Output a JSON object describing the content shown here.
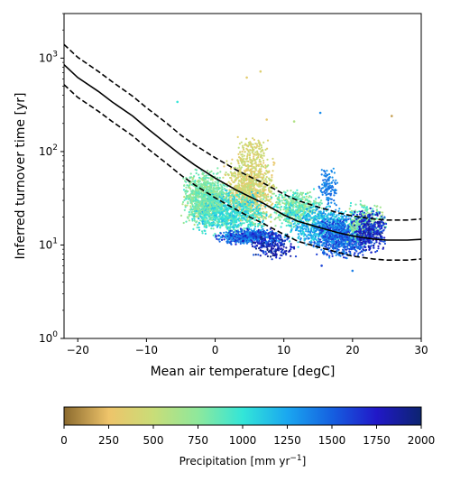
{
  "chart_data": {
    "type": "scatter",
    "x_axis": {
      "label": "Mean air temperature [degC]",
      "range": [
        -22,
        30
      ],
      "ticks": [
        -20,
        -10,
        0,
        10,
        20,
        30
      ],
      "tick_labels": [
        "−20",
        "−10",
        "0",
        "10",
        "20",
        "30"
      ]
    },
    "y_axis": {
      "label": "Inferred turnover time [yr]",
      "scale": "log",
      "range": [
        1,
        3000
      ],
      "ticks": [
        1,
        10,
        100,
        1000
      ],
      "tick_labels": {
        "1": {
          "base": "10",
          "exp": "0"
        },
        "10": {
          "base": "10",
          "exp": "1"
        },
        "100": {
          "base": "10",
          "exp": "2"
        },
        "1000": {
          "base": "10",
          "exp": "3"
        }
      }
    },
    "colorbar": {
      "label_main": "Precipitation [mm yr",
      "label_sup": "−1",
      "label_end": "]",
      "range": [
        0,
        2000
      ],
      "ticks": [
        0,
        250,
        500,
        750,
        1000,
        1250,
        1500,
        1750,
        2000
      ],
      "tick_labels": [
        "0",
        "250",
        "500",
        "750",
        "1000",
        "1250",
        "1500",
        "1750",
        "2000"
      ],
      "colormap_stops": [
        {
          "value": 0,
          "color": "#8b6a2e"
        },
        {
          "value": 250,
          "color": "#eec46a"
        },
        {
          "value": 500,
          "color": "#c9dd78"
        },
        {
          "value": 750,
          "color": "#8ee89c"
        },
        {
          "value": 1000,
          "color": "#33e6d8"
        },
        {
          "value": 1250,
          "color": "#1aa7f0"
        },
        {
          "value": 1500,
          "color": "#1560e0"
        },
        {
          "value": 1750,
          "color": "#2118c8"
        },
        {
          "value": 2000,
          "color": "#0c2470"
        }
      ]
    },
    "fit_lines": [
      {
        "style": "solid",
        "color": "#000000",
        "points": [
          [
            -22,
            850
          ],
          [
            -20,
            620
          ],
          [
            -17,
            440
          ],
          [
            -15,
            340
          ],
          [
            -12,
            240
          ],
          [
            -10,
            180
          ],
          [
            -7,
            120
          ],
          [
            -5,
            92
          ],
          [
            -3,
            72
          ],
          [
            0,
            52
          ],
          [
            3,
            39
          ],
          [
            5,
            33
          ],
          [
            7,
            28
          ],
          [
            10,
            21
          ],
          [
            12,
            18
          ],
          [
            15,
            15.5
          ],
          [
            18,
            13.5
          ],
          [
            20,
            12.5
          ],
          [
            23,
            11.6
          ],
          [
            25,
            11.3
          ],
          [
            28,
            11.3
          ],
          [
            30,
            11.5
          ]
        ]
      },
      {
        "style": "dashed",
        "color": "#000000",
        "points": [
          [
            -22,
            1400
          ],
          [
            -20,
            1020
          ],
          [
            -17,
            720
          ],
          [
            -15,
            560
          ],
          [
            -12,
            390
          ],
          [
            -10,
            295
          ],
          [
            -7,
            200
          ],
          [
            -5,
            150
          ],
          [
            -3,
            118
          ],
          [
            0,
            86
          ],
          [
            3,
            64
          ],
          [
            5,
            54
          ],
          [
            7,
            46
          ],
          [
            10,
            35
          ],
          [
            12,
            30
          ],
          [
            15,
            25.5
          ],
          [
            18,
            22
          ],
          [
            20,
            20.5
          ],
          [
            23,
            19
          ],
          [
            25,
            18.5
          ],
          [
            28,
            18.5
          ],
          [
            30,
            19
          ]
        ]
      },
      {
        "style": "dashed",
        "color": "#000000",
        "points": [
          [
            -22,
            520
          ],
          [
            -20,
            380
          ],
          [
            -17,
            270
          ],
          [
            -15,
            210
          ],
          [
            -12,
            147
          ],
          [
            -10,
            110
          ],
          [
            -7,
            74
          ],
          [
            -5,
            56
          ],
          [
            -3,
            44
          ],
          [
            0,
            32
          ],
          [
            3,
            24
          ],
          [
            5,
            20
          ],
          [
            7,
            17
          ],
          [
            10,
            13
          ],
          [
            12,
            11
          ],
          [
            15,
            9.5
          ],
          [
            18,
            8.3
          ],
          [
            20,
            7.6
          ],
          [
            23,
            7.1
          ],
          [
            25,
            6.9
          ],
          [
            28,
            6.9
          ],
          [
            30,
            7.1
          ]
        ]
      }
    ],
    "clusters": [
      {
        "x": [
          -5,
          2
        ],
        "y": [
          15,
          60
        ],
        "precip": [
          500,
          1000
        ],
        "n": 750
      },
      {
        "x": [
          1,
          9
        ],
        "y": [
          16,
          90
        ],
        "precip": [
          240,
          600
        ],
        "n": 950
      },
      {
        "x": [
          -4,
          8
        ],
        "y": [
          12,
          40
        ],
        "precip": [
          800,
          1200
        ],
        "n": 850
      },
      {
        "x": [
          0,
          10
        ],
        "y": [
          10,
          15
        ],
        "precip": [
          1250,
          1800
        ],
        "n": 600
      },
      {
        "x": [
          5,
          12
        ],
        "y": [
          7,
          14
        ],
        "precip": [
          1500,
          2000
        ],
        "n": 220
      },
      {
        "x": [
          8,
          16
        ],
        "y": [
          15,
          40
        ],
        "precip": [
          600,
          1050
        ],
        "n": 500
      },
      {
        "x": [
          10,
          22
        ],
        "y": [
          9,
          28
        ],
        "precip": [
          1000,
          1400
        ],
        "n": 700
      },
      {
        "x": [
          14,
          23
        ],
        "y": [
          7,
          20
        ],
        "precip": [
          1300,
          1700
        ],
        "n": 700
      },
      {
        "x": [
          19,
          25
        ],
        "y": [
          10,
          30
        ],
        "precip": [
          550,
          1000
        ],
        "n": 350
      },
      {
        "x": [
          20,
          25
        ],
        "y": [
          8,
          25
        ],
        "precip": [
          1500,
          1900
        ],
        "n": 350
      },
      {
        "x": [
          3,
          8
        ],
        "y": [
          60,
          150
        ],
        "precip": [
          300,
          550
        ],
        "n": 160
      },
      {
        "x": [
          -5,
          2
        ],
        "y": [
          20,
          70
        ],
        "precip": [
          700,
          900
        ],
        "n": 250
      },
      {
        "x": [
          15,
          18
        ],
        "y": [
          25,
          70
        ],
        "precip": [
          1300,
          1500
        ],
        "n": 120
      }
    ],
    "outliers": [
      {
        "x": -5.5,
        "y": 340,
        "precip": 1000
      },
      {
        "x": 4.6,
        "y": 620,
        "precip": 330
      },
      {
        "x": 6.6,
        "y": 720,
        "precip": 360
      },
      {
        "x": 7.5,
        "y": 220,
        "precip": 300
      },
      {
        "x": 11.5,
        "y": 210,
        "precip": 600
      },
      {
        "x": 15.3,
        "y": 260,
        "precip": 1350
      },
      {
        "x": 25.7,
        "y": 240,
        "precip": 150
      },
      {
        "x": 15.5,
        "y": 6.0,
        "precip": 1600
      },
      {
        "x": 20.0,
        "y": 5.3,
        "precip": 1400
      }
    ]
  }
}
